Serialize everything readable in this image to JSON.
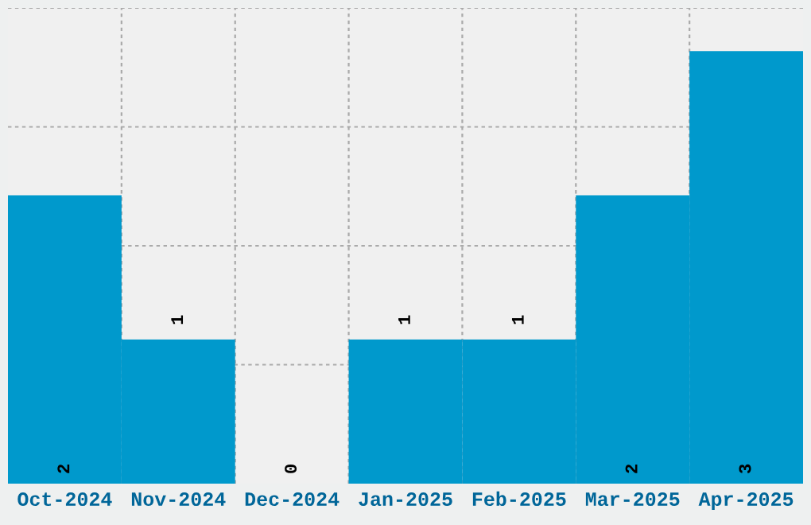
{
  "chart_data": {
    "type": "bar",
    "categories": [
      "Oct-2024",
      "Nov-2024",
      "Dec-2024",
      "Jan-2025",
      "Feb-2025",
      "Mar-2025",
      "Apr-2025"
    ],
    "values": [
      2,
      1,
      0,
      1,
      1,
      2,
      3
    ],
    "color": "#0099cc",
    "ylim": [
      0,
      3.3
    ],
    "yticks": [
      {
        "value": 0.825,
        "label": null
      },
      {
        "value": 1.65,
        "label": null
      },
      {
        "value": 2.475,
        "label": null
      },
      {
        "value": 3.3,
        "label": null
      }
    ],
    "tick_labels": "x",
    "grid": true,
    "data_labels": true
  }
}
